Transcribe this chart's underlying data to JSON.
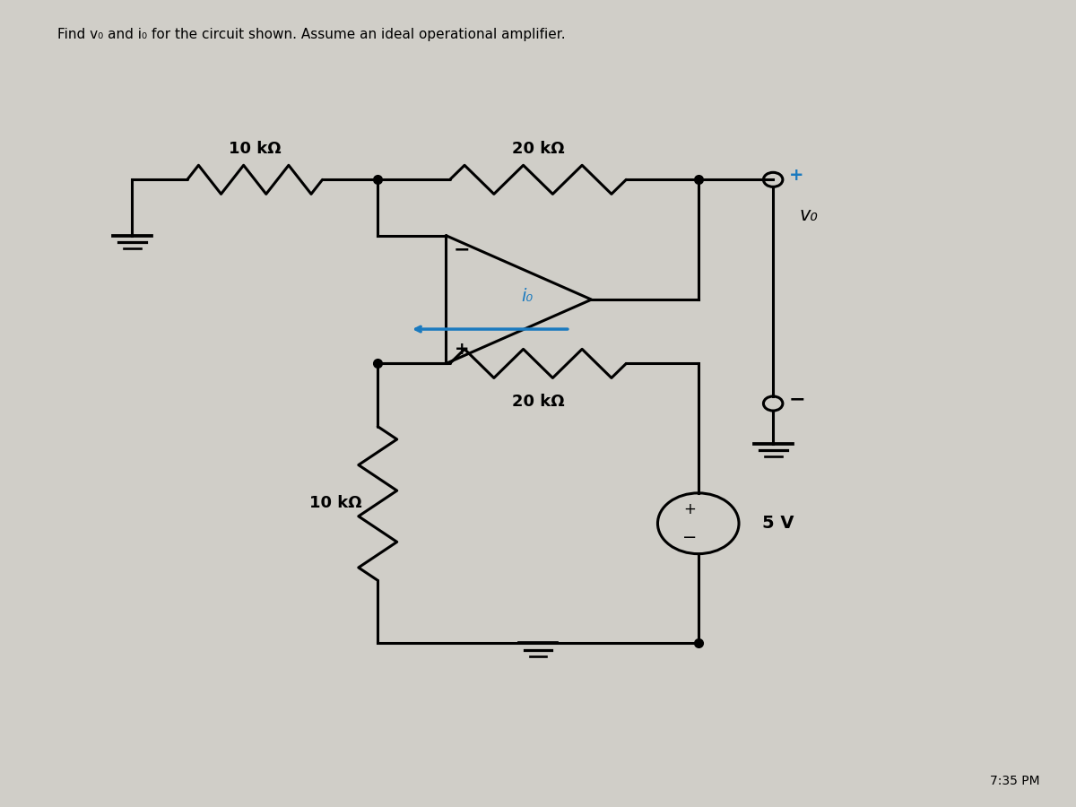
{
  "title": "Find v₀ and i₀ for the circuit shown. Assume an ideal operational amplifier.",
  "title_fontsize": 11,
  "background_color": "#f0eeea",
  "fig_bg": "#d0cec8",
  "resistor_10k_top_label": "10 kΩ",
  "resistor_20k_top_label": "20 kΩ",
  "resistor_20k_bot_label": "20 kΩ",
  "resistor_10k_bot_label": "10 kΩ",
  "voltage_source_label": "5 V",
  "vo_label": "v₀",
  "io_label": "i₀",
  "wire_color": "#000000",
  "resistor_color": "#000000",
  "opamp_color": "#000000",
  "arrow_color": "#1a7abf",
  "label_color_blue": "#1a7abf",
  "plus_color": "#1a7abf",
  "minus_color": "#000000",
  "timestamp": "7:35 PM"
}
